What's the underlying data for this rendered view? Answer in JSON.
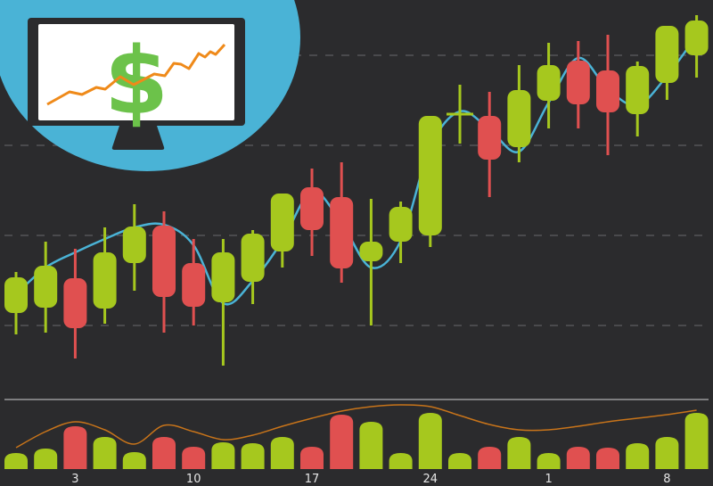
{
  "colors": {
    "background": "#2b2b2d",
    "up": "#a6c81e",
    "down": "#e05050",
    "moving_average": "#4ab3d6",
    "volume_average": "#c8741a",
    "badge": "#4ab3d6",
    "grid": "#555558"
  },
  "illustration": {
    "icon": "monitor-with-dollar-sign-and-rising-line",
    "symbol": "$"
  },
  "chart_data": {
    "type": "candlestick",
    "title": "",
    "grid": "horizontal dashed",
    "ylim": [
      0,
      450
    ],
    "gridlines": [
      85,
      186,
      287,
      388
    ],
    "candles": [
      {
        "open": 99,
        "close": 139,
        "high": 145,
        "low": 75
      },
      {
        "open": 105,
        "close": 152,
        "high": 179,
        "low": 77
      },
      {
        "open": 138,
        "close": 82,
        "high": 171,
        "low": 48
      },
      {
        "open": 104,
        "close": 167,
        "high": 195,
        "low": 87
      },
      {
        "open": 155,
        "close": 196,
        "high": 221,
        "low": 124
      },
      {
        "open": 197,
        "close": 117,
        "high": 213,
        "low": 77
      },
      {
        "open": 155,
        "close": 106,
        "high": 182,
        "low": 85
      },
      {
        "open": 111,
        "close": 167,
        "high": 182,
        "low": 40
      },
      {
        "open": 134,
        "close": 188,
        "high": 192,
        "low": 109
      },
      {
        "open": 168,
        "close": 233,
        "high": 233,
        "low": 150
      },
      {
        "open": 240,
        "close": 192,
        "high": 261,
        "low": 163
      },
      {
        "open": 229,
        "close": 149,
        "high": 268,
        "low": 133
      },
      {
        "open": 157,
        "close": 179,
        "high": 227,
        "low": 85
      },
      {
        "open": 179,
        "close": 218,
        "high": 224,
        "low": 155
      },
      {
        "open": 186,
        "close": 320,
        "high": 320,
        "low": 173
      },
      {
        "open": 322,
        "close": 322,
        "high": 355,
        "low": 289
      },
      {
        "open": 320,
        "close": 271,
        "high": 347,
        "low": 229
      },
      {
        "open": 285,
        "close": 349,
        "high": 377,
        "low": 268
      },
      {
        "open": 337,
        "close": 377,
        "high": 402,
        "low": 306
      },
      {
        "open": 382,
        "close": 333,
        "high": 404,
        "low": 306
      },
      {
        "open": 371,
        "close": 324,
        "high": 411,
        "low": 276
      },
      {
        "open": 322,
        "close": 376,
        "high": 381,
        "low": 297
      },
      {
        "open": 357,
        "close": 421,
        "high": 421,
        "low": 338
      },
      {
        "open": 388,
        "close": 427,
        "high": 433,
        "low": 363
      }
    ],
    "moving_average": [
      120,
      150,
      167,
      182,
      195,
      198,
      175,
      110,
      135,
      180,
      235,
      200,
      150,
      180,
      285,
      325,
      305,
      280,
      335,
      385,
      350,
      332,
      365,
      410
    ],
    "volume": [
      18,
      23,
      48,
      36,
      19,
      36,
      25,
      30,
      29,
      36,
      25,
      61,
      53,
      18,
      63,
      18,
      25,
      36,
      18,
      25,
      24,
      29,
      36,
      63
    ],
    "volume_average": [
      24,
      42,
      53,
      44,
      28,
      49,
      42,
      33,
      38,
      48,
      57,
      65,
      70,
      72,
      70,
      60,
      50,
      44,
      44,
      48,
      53,
      57,
      61,
      66
    ],
    "x_tick_labels": [
      {
        "index": 2,
        "label": "3"
      },
      {
        "index": 6,
        "label": "10"
      },
      {
        "index": 10,
        "label": "17"
      },
      {
        "index": 14,
        "label": "24"
      },
      {
        "index": 18,
        "label": "1"
      },
      {
        "index": 22,
        "label": "8"
      }
    ]
  }
}
